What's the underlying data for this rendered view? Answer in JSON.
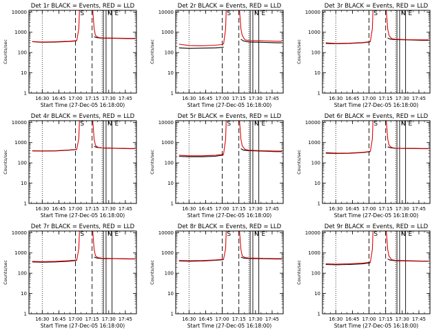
{
  "chart_data": [
    {
      "type": "line",
      "title": "Det 1r BLACK = Events, RED = LLD",
      "xlabel": "Start Time (27-Dec-05 16:18:00)",
      "ylabel": "Counts/sec",
      "yscale": "log",
      "ylim": [
        1,
        12000
      ],
      "xlim": [
        16.3,
        17.9167
      ],
      "xticks": [
        "16:30",
        "16:45",
        "17:00",
        "17:15",
        "17:30",
        "17:45"
      ],
      "yticks": [
        "1",
        "10",
        "100",
        "1000",
        "10000"
      ],
      "marker_labels": [
        "S",
        "N",
        "E"
      ],
      "series": [
        {
          "color": "#000000",
          "x": [
            16.35,
            16.5,
            16.7,
            16.9,
            17.0,
            17.02
          ],
          "y": [
            340,
            320,
            330,
            350,
            370,
            380
          ]
        },
        {
          "color": "#000000",
          "x": [
            17.28,
            17.32,
            17.4,
            17.6,
            17.8,
            17.9
          ],
          "y": [
            600,
            540,
            510,
            500,
            490,
            490
          ]
        },
        {
          "color": "#e00000",
          "x": [
            16.35,
            16.5,
            16.7,
            16.9,
            17.0,
            17.02,
            17.05,
            17.06
          ],
          "y": [
            350,
            330,
            340,
            360,
            380,
            400,
            1500,
            12000
          ]
        },
        {
          "color": "#e00000",
          "x": [
            17.26,
            17.28,
            17.3,
            17.34,
            17.4,
            17.6,
            17.8,
            17.9
          ],
          "y": [
            12000,
            1500,
            700,
            560,
            520,
            510,
            500,
            500
          ]
        }
      ]
    },
    {
      "type": "line",
      "title": "Det 2r BLACK = Events, RED = LLD",
      "xlabel": "Start Time (27-Dec-05 16:18:00)",
      "ylabel": "Counts/sec",
      "yscale": "log",
      "ylim": [
        1,
        12000
      ],
      "xlim": [
        16.3,
        17.9167
      ],
      "xticks": [
        "16:30",
        "16:45",
        "17:00",
        "17:15",
        "17:30",
        "17:45"
      ],
      "yticks": [
        "1",
        "10",
        "100",
        "1000",
        "10000"
      ],
      "marker_labels": [
        "S",
        "N",
        "E"
      ],
      "series": [
        {
          "color": "#000000",
          "x": [
            16.35,
            16.5,
            16.7,
            16.9,
            17.0,
            17.02
          ],
          "y": [
            170,
            160,
            165,
            170,
            180,
            185
          ]
        },
        {
          "color": "#000000",
          "x": [
            17.28,
            17.32,
            17.4,
            17.6,
            17.8,
            17.9
          ],
          "y": [
            450,
            370,
            330,
            320,
            300,
            300
          ]
        },
        {
          "color": "#e00000",
          "x": [
            16.35,
            16.5,
            16.7,
            16.9,
            17.0,
            17.02,
            17.05,
            17.06
          ],
          "y": [
            260,
            220,
            215,
            230,
            250,
            270,
            1400,
            12000
          ]
        },
        {
          "color": "#e00000",
          "x": [
            17.26,
            17.28,
            17.3,
            17.34,
            17.4,
            17.6,
            17.8,
            17.9
          ],
          "y": [
            12000,
            1500,
            700,
            420,
            390,
            380,
            360,
            360
          ]
        }
      ]
    },
    {
      "type": "line",
      "title": "Det 3r BLACK = Events, RED = LLD",
      "xlabel": "Start Time (27-Dec-05 16:18:00)",
      "ylabel": "Counts/sec",
      "yscale": "log",
      "ylim": [
        1,
        12000
      ],
      "xlim": [
        16.3,
        17.9167
      ],
      "xticks": [
        "16:30",
        "16:45",
        "17:00",
        "17:15",
        "17:30",
        "17:45"
      ],
      "yticks": [
        "1",
        "10",
        "100",
        "1000",
        "10000"
      ],
      "marker_labels": [
        "S",
        "N",
        "E"
      ],
      "series": [
        {
          "color": "#000000",
          "x": [
            16.35,
            16.5,
            16.7,
            16.9,
            17.0,
            17.02
          ],
          "y": [
            280,
            270,
            280,
            300,
            330,
            340
          ]
        },
        {
          "color": "#000000",
          "x": [
            17.28,
            17.32,
            17.4,
            17.6,
            17.8,
            17.9
          ],
          "y": [
            520,
            460,
            430,
            420,
            400,
            400
          ]
        },
        {
          "color": "#e00000",
          "x": [
            16.35,
            16.5,
            16.7,
            16.9,
            17.0,
            17.02,
            17.05,
            17.06
          ],
          "y": [
            300,
            280,
            290,
            310,
            340,
            360,
            1500,
            12000
          ]
        },
        {
          "color": "#e00000",
          "x": [
            17.26,
            17.28,
            17.3,
            17.34,
            17.4,
            17.6,
            17.8,
            17.9
          ],
          "y": [
            12000,
            1500,
            700,
            480,
            450,
            430,
            420,
            420
          ]
        }
      ]
    },
    {
      "type": "line",
      "title": "Det 4r BLACK = Events, RED = LLD",
      "xlabel": "Start Time (27-Dec-05 16:18:00)",
      "ylabel": "Counts/sec",
      "yscale": "log",
      "ylim": [
        1,
        12000
      ],
      "xlim": [
        16.3,
        17.9167
      ],
      "xticks": [
        "16:30",
        "16:45",
        "17:00",
        "17:15",
        "17:30",
        "17:45"
      ],
      "yticks": [
        "1",
        "10",
        "100",
        "1000",
        "10000"
      ],
      "marker_labels": [
        "S",
        "N",
        "E"
      ],
      "series": [
        {
          "color": "#000000",
          "x": [
            16.35,
            16.5,
            16.7,
            16.9,
            17.0,
            17.02
          ],
          "y": [
            390,
            380,
            390,
            420,
            450,
            460
          ]
        },
        {
          "color": "#000000",
          "x": [
            17.28,
            17.32,
            17.4,
            17.6,
            17.8,
            17.9
          ],
          "y": [
            640,
            580,
            540,
            520,
            500,
            500
          ]
        },
        {
          "color": "#e00000",
          "x": [
            16.35,
            16.5,
            16.7,
            16.9,
            17.0,
            17.02,
            17.05,
            17.06
          ],
          "y": [
            400,
            390,
            400,
            430,
            460,
            480,
            1600,
            12000
          ]
        },
        {
          "color": "#e00000",
          "x": [
            17.26,
            17.28,
            17.3,
            17.34,
            17.4,
            17.6,
            17.8,
            17.9
          ],
          "y": [
            12000,
            1500,
            720,
            580,
            550,
            530,
            510,
            510
          ]
        }
      ]
    },
    {
      "type": "line",
      "title": "Det 5r BLACK = Events, RED = LLD",
      "xlabel": "Start Time (27-Dec-05 16:18:00)",
      "ylabel": "Counts/sec",
      "yscale": "log",
      "ylim": [
        1,
        12000
      ],
      "xlim": [
        16.3,
        17.9167
      ],
      "xticks": [
        "16:30",
        "16:45",
        "17:00",
        "17:15",
        "17:30",
        "17:45"
      ],
      "yticks": [
        "1",
        "10",
        "100",
        "1000",
        "10000"
      ],
      "marker_labels": [
        "S",
        "N",
        "E"
      ],
      "series": [
        {
          "color": "#000000",
          "x": [
            16.35,
            16.5,
            16.7,
            16.9,
            17.0,
            17.02
          ],
          "y": [
            210,
            200,
            200,
            215,
            240,
            250
          ]
        },
        {
          "color": "#000000",
          "x": [
            17.28,
            17.32,
            17.4,
            17.6,
            17.8,
            17.9
          ],
          "y": [
            500,
            420,
            400,
            380,
            360,
            360
          ]
        },
        {
          "color": "#e00000",
          "x": [
            16.35,
            16.5,
            16.7,
            16.9,
            17.0,
            17.02,
            17.05,
            17.06
          ],
          "y": [
            240,
            225,
            225,
            240,
            260,
            280,
            1400,
            12000
          ]
        },
        {
          "color": "#e00000",
          "x": [
            17.26,
            17.28,
            17.3,
            17.34,
            17.4,
            17.6,
            17.8,
            17.9
          ],
          "y": [
            12000,
            1500,
            700,
            460,
            420,
            400,
            380,
            380
          ]
        }
      ]
    },
    {
      "type": "line",
      "title": "Det 6r BLACK = Events, RED = LLD",
      "xlabel": "Start Time (27-Dec-05 16:18:00)",
      "ylabel": "Counts/sec",
      "yscale": "log",
      "ylim": [
        1,
        12000
      ],
      "xlim": [
        16.3,
        17.9167
      ],
      "xticks": [
        "16:30",
        "16:45",
        "17:00",
        "17:15",
        "17:30",
        "17:45"
      ],
      "yticks": [
        "1",
        "10",
        "100",
        "1000",
        "10000"
      ],
      "marker_labels": [
        "S",
        "N",
        "E"
      ],
      "series": [
        {
          "color": "#000000",
          "x": [
            16.35,
            16.5,
            16.7,
            16.9,
            17.0,
            17.02
          ],
          "y": [
            300,
            290,
            295,
            320,
            350,
            360
          ]
        },
        {
          "color": "#000000",
          "x": [
            17.28,
            17.32,
            17.4,
            17.6,
            17.8,
            17.9
          ],
          "y": [
            620,
            560,
            520,
            510,
            500,
            500
          ]
        },
        {
          "color": "#e00000",
          "x": [
            16.35,
            16.5,
            16.7,
            16.9,
            17.0,
            17.02,
            17.05,
            17.06
          ],
          "y": [
            320,
            300,
            305,
            330,
            360,
            380,
            1500,
            12000
          ]
        },
        {
          "color": "#e00000",
          "x": [
            17.26,
            17.28,
            17.3,
            17.34,
            17.4,
            17.6,
            17.8,
            17.9
          ],
          "y": [
            12000,
            1600,
            750,
            570,
            530,
            520,
            510,
            510
          ]
        }
      ]
    },
    {
      "type": "line",
      "title": "Det 7r BLACK = Events, RED = LLD",
      "xlabel": "Start Time (27-Dec-05 16:18:00)",
      "ylabel": "Counts/sec",
      "yscale": "log",
      "ylim": [
        1,
        12000
      ],
      "xlim": [
        16.3,
        17.9167
      ],
      "xticks": [
        "16:30",
        "16:45",
        "17:00",
        "17:15",
        "17:30",
        "17:45"
      ],
      "yticks": [
        "1",
        "10",
        "100",
        "1000",
        "10000"
      ],
      "marker_labels": [
        "S",
        "N",
        "E"
      ],
      "series": [
        {
          "color": "#000000",
          "x": [
            16.35,
            16.5,
            16.7,
            16.9,
            17.0,
            17.02
          ],
          "y": [
            360,
            350,
            360,
            390,
            420,
            430
          ]
        },
        {
          "color": "#000000",
          "x": [
            17.28,
            17.32,
            17.4,
            17.6,
            17.8,
            17.9
          ],
          "y": [
            620,
            560,
            530,
            520,
            500,
            500
          ]
        },
        {
          "color": "#e00000",
          "x": [
            16.35,
            16.5,
            16.7,
            16.9,
            17.0,
            17.02,
            17.05,
            17.06
          ],
          "y": [
            380,
            370,
            380,
            410,
            440,
            460,
            1600,
            12000
          ]
        },
        {
          "color": "#e00000",
          "x": [
            17.26,
            17.28,
            17.3,
            17.34,
            17.4,
            17.6,
            17.8,
            17.9
          ],
          "y": [
            12000,
            1500,
            720,
            580,
            550,
            530,
            510,
            510
          ]
        }
      ]
    },
    {
      "type": "line",
      "title": "Det 8r BLACK = Events, RED = LLD",
      "xlabel": "Start Time (27-Dec-05 16:18:00)",
      "ylabel": "Counts/sec",
      "yscale": "log",
      "ylim": [
        1,
        12000
      ],
      "xlim": [
        16.3,
        17.9167
      ],
      "xticks": [
        "16:30",
        "16:45",
        "17:00",
        "17:15",
        "17:30",
        "17:45"
      ],
      "yticks": [
        "1",
        "10",
        "100",
        "1000",
        "10000"
      ],
      "marker_labels": [
        "S",
        "N",
        "E"
      ],
      "series": [
        {
          "color": "#000000",
          "x": [
            16.35,
            16.5,
            16.7,
            16.9,
            17.0,
            17.02
          ],
          "y": [
            400,
            390,
            400,
            430,
            460,
            470
          ]
        },
        {
          "color": "#000000",
          "x": [
            17.28,
            17.32,
            17.4,
            17.6,
            17.8,
            17.9
          ],
          "y": [
            620,
            560,
            530,
            520,
            500,
            500
          ]
        },
        {
          "color": "#e00000",
          "x": [
            16.35,
            16.5,
            16.7,
            16.9,
            17.0,
            17.02,
            17.05,
            17.06
          ],
          "y": [
            420,
            410,
            420,
            450,
            480,
            500,
            1600,
            12000
          ]
        },
        {
          "color": "#e00000",
          "x": [
            17.26,
            17.28,
            17.3,
            17.34,
            17.4,
            17.6,
            17.8,
            17.9
          ],
          "y": [
            12000,
            1500,
            720,
            590,
            560,
            540,
            520,
            520
          ]
        }
      ]
    },
    {
      "type": "line",
      "title": "Det 9r BLACK = Events, RED = LLD",
      "xlabel": "Start Time (27-Dec-05 16:18:00)",
      "ylabel": "Counts/sec",
      "yscale": "log",
      "ylim": [
        1,
        12000
      ],
      "xlim": [
        16.3,
        17.9167
      ],
      "xticks": [
        "16:30",
        "16:45",
        "17:00",
        "17:15",
        "17:30",
        "17:45"
      ],
      "yticks": [
        "1",
        "10",
        "100",
        "1000",
        "10000"
      ],
      "marker_labels": [
        "S",
        "N",
        "E"
      ],
      "series": [
        {
          "color": "#000000",
          "x": [
            16.35,
            16.5,
            16.7,
            16.9,
            17.0,
            17.02
          ],
          "y": [
            270,
            260,
            270,
            290,
            320,
            330
          ]
        },
        {
          "color": "#000000",
          "x": [
            17.28,
            17.32,
            17.4,
            17.6,
            17.8,
            17.9
          ],
          "y": [
            500,
            440,
            410,
            400,
            390,
            390
          ]
        },
        {
          "color": "#e00000",
          "x": [
            16.35,
            16.5,
            16.7,
            16.9,
            17.0,
            17.02,
            17.05,
            17.06
          ],
          "y": [
            290,
            280,
            290,
            310,
            340,
            360,
            1500,
            12000
          ]
        },
        {
          "color": "#e00000",
          "x": [
            17.26,
            17.28,
            17.3,
            17.34,
            17.4,
            17.6,
            17.8,
            17.9
          ],
          "y": [
            12000,
            1500,
            700,
            460,
            430,
            410,
            400,
            400
          ]
        }
      ]
    }
  ]
}
